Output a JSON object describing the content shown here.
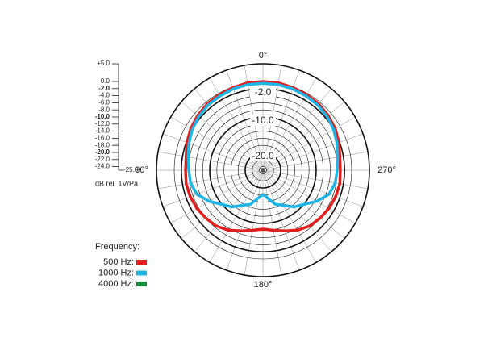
{
  "chart_data": {
    "type": "polar",
    "rlim": [
      -25,
      5
    ],
    "rticks": [
      {
        "value": 5,
        "label": "+5.0"
      },
      {
        "value": 0,
        "label": "0.0"
      },
      {
        "value": -2,
        "label": "-2.0"
      },
      {
        "value": -4,
        "label": "-4.0"
      },
      {
        "value": -6,
        "label": "-6.0"
      },
      {
        "value": -8,
        "label": "-8.0"
      },
      {
        "value": -10,
        "label": "-10.0"
      },
      {
        "value": -12,
        "label": "-12.0"
      },
      {
        "value": -14,
        "label": "-14.0"
      },
      {
        "value": -16,
        "label": "-16.0"
      },
      {
        "value": -18,
        "label": "-18.0"
      },
      {
        "value": -20,
        "label": "-20.0"
      },
      {
        "value": -22,
        "label": "-22.0"
      },
      {
        "value": -24,
        "label": "-24.0"
      },
      {
        "value": -25,
        "label": "-25.0"
      }
    ],
    "major_rings": [
      -2,
      -10,
      -20
    ],
    "ring_labels": [
      {
        "value": -2,
        "label": "-2.0"
      },
      {
        "value": -10,
        "label": "-10.0"
      },
      {
        "value": -20,
        "label": "-20.0"
      }
    ],
    "angle_labels": [
      {
        "value": 0,
        "label": "0°"
      },
      {
        "value": 90,
        "label": "90°"
      },
      {
        "value": 180,
        "label": "180°"
      },
      {
        "value": 270,
        "label": "270°"
      }
    ],
    "axis_label": "dB rel. 1V/Pa",
    "legend_title": "Frequency:",
    "theta": [
      0,
      10,
      20,
      30,
      40,
      50,
      60,
      70,
      80,
      90,
      100,
      110,
      120,
      130,
      140,
      150,
      160,
      170,
      180,
      190,
      200,
      210,
      220,
      230,
      240,
      250,
      260,
      270,
      280,
      290,
      300,
      310,
      320,
      330,
      340,
      350
    ],
    "series": [
      {
        "name": "500 Hz:",
        "color": "#e31c1c",
        "values": [
          0,
          0,
          -0.2,
          -0.4,
          -0.6,
          -1,
          -1.5,
          -2.2,
          -3,
          -3.2,
          -3,
          -3.2,
          -3.5,
          -4,
          -4.5,
          -5.5,
          -6.8,
          -7.8,
          -8.4,
          -7.8,
          -6.8,
          -5.5,
          -4.5,
          -4,
          -3.5,
          -3.2,
          -3,
          -3.2,
          -3,
          -2.2,
          -1.5,
          -1,
          -0.6,
          -0.4,
          -0.2,
          0
        ]
      },
      {
        "name": "1000 Hz:",
        "color": "#1eb4e6",
        "values": [
          -0.5,
          -0.5,
          -0.6,
          -0.8,
          -1,
          -1.4,
          -2,
          -2.8,
          -3.6,
          -4.1,
          -4.3,
          -5.2,
          -7.5,
          -10,
          -11.5,
          -13.6,
          -14.8,
          -17,
          -18.2,
          -17,
          -14.8,
          -13.6,
          -11.5,
          -10,
          -7.5,
          -5.2,
          -4.3,
          -4.1,
          -3.6,
          -2.8,
          -2,
          -1.4,
          -1,
          -0.8,
          -0.6,
          -0.5
        ]
      },
      {
        "name": "4000 Hz:",
        "color": "#1a8c3c",
        "values": [
          null,
          null,
          null,
          null,
          null,
          null,
          null,
          null,
          null,
          null,
          null,
          null,
          null,
          null,
          null,
          null,
          null,
          null,
          null,
          null,
          null,
          null,
          null,
          null,
          null,
          null,
          null,
          null,
          null,
          null,
          null,
          null,
          null,
          null,
          null,
          null
        ]
      }
    ]
  }
}
